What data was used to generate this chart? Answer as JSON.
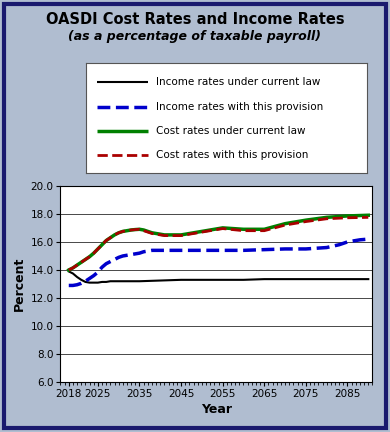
{
  "title": "OASDI Cost Rates and Income Rates",
  "subtitle": "(as a percentage of taxable payroll)",
  "xlabel": "Year",
  "ylabel": "Percent",
  "fig_bg_color": "#b0bdd0",
  "plot_bg_color": "#ffffff",
  "border_color": "#1a1a6e",
  "ylim": [
    6.0,
    20.0
  ],
  "yticks": [
    6.0,
    8.0,
    10.0,
    12.0,
    14.0,
    16.0,
    18.0,
    20.0
  ],
  "xticks": [
    2018,
    2025,
    2035,
    2045,
    2055,
    2065,
    2075,
    2085
  ],
  "xlim": [
    2016,
    2091
  ],
  "income_current_law": {
    "years": [
      2018,
      2019,
      2020,
      2021,
      2022,
      2023,
      2024,
      2025,
      2026,
      2027,
      2028,
      2029,
      2030,
      2031,
      2032,
      2033,
      2034,
      2035,
      2040,
      2045,
      2050,
      2055,
      2060,
      2065,
      2070,
      2075,
      2080,
      2085,
      2090
    ],
    "values": [
      13.9,
      13.75,
      13.5,
      13.3,
      13.15,
      13.1,
      13.1,
      13.1,
      13.15,
      13.15,
      13.2,
      13.2,
      13.2,
      13.2,
      13.2,
      13.2,
      13.2,
      13.2,
      13.25,
      13.3,
      13.3,
      13.3,
      13.3,
      13.35,
      13.35,
      13.35,
      13.35,
      13.35,
      13.35
    ],
    "color": "#000000",
    "linewidth": 1.5,
    "linestyle": "-",
    "label": "Income rates under current law"
  },
  "income_provision": {
    "years": [
      2018,
      2019,
      2020,
      2021,
      2022,
      2023,
      2024,
      2025,
      2026,
      2027,
      2028,
      2029,
      2030,
      2031,
      2032,
      2033,
      2034,
      2035,
      2036,
      2037,
      2038,
      2039,
      2040,
      2045,
      2050,
      2055,
      2060,
      2065,
      2070,
      2075,
      2080,
      2083,
      2085,
      2088,
      2090
    ],
    "values": [
      12.9,
      12.9,
      12.95,
      13.05,
      13.2,
      13.4,
      13.6,
      13.85,
      14.2,
      14.45,
      14.6,
      14.75,
      14.9,
      15.0,
      15.05,
      15.1,
      15.15,
      15.2,
      15.3,
      15.35,
      15.4,
      15.4,
      15.4,
      15.4,
      15.4,
      15.4,
      15.4,
      15.45,
      15.5,
      15.5,
      15.6,
      15.8,
      16.0,
      16.15,
      16.2
    ],
    "color": "#0000cc",
    "linewidth": 2.5,
    "linestyle": "--",
    "label": "Income rates with this provision"
  },
  "cost_current_law": {
    "years": [
      2018,
      2019,
      2020,
      2021,
      2022,
      2023,
      2024,
      2025,
      2026,
      2027,
      2028,
      2029,
      2030,
      2031,
      2032,
      2033,
      2034,
      2035,
      2036,
      2037,
      2038,
      2039,
      2040,
      2041,
      2042,
      2043,
      2044,
      2045,
      2046,
      2047,
      2048,
      2050,
      2055,
      2060,
      2065,
      2070,
      2075,
      2080,
      2085,
      2090
    ],
    "values": [
      14.0,
      14.15,
      14.35,
      14.55,
      14.75,
      14.95,
      15.2,
      15.5,
      15.8,
      16.1,
      16.3,
      16.5,
      16.65,
      16.75,
      16.8,
      16.85,
      16.88,
      16.9,
      16.85,
      16.75,
      16.65,
      16.6,
      16.55,
      16.5,
      16.5,
      16.5,
      16.5,
      16.5,
      16.55,
      16.6,
      16.65,
      16.75,
      17.0,
      16.9,
      16.9,
      17.3,
      17.55,
      17.75,
      17.85,
      17.9
    ],
    "color": "#008000",
    "linewidth": 2.5,
    "linestyle": "-",
    "label": "Cost rates under current law"
  },
  "cost_provision": {
    "years": [
      2018,
      2019,
      2020,
      2021,
      2022,
      2023,
      2024,
      2025,
      2026,
      2027,
      2028,
      2029,
      2030,
      2031,
      2032,
      2033,
      2034,
      2035,
      2036,
      2037,
      2038,
      2039,
      2040,
      2041,
      2042,
      2043,
      2044,
      2045,
      2046,
      2047,
      2048,
      2050,
      2055,
      2060,
      2065,
      2070,
      2075,
      2080,
      2085,
      2090
    ],
    "values": [
      14.0,
      14.15,
      14.35,
      14.55,
      14.75,
      14.95,
      15.2,
      15.5,
      15.8,
      16.1,
      16.3,
      16.5,
      16.65,
      16.75,
      16.8,
      16.85,
      16.88,
      16.9,
      16.8,
      16.7,
      16.6,
      16.55,
      16.5,
      16.45,
      16.45,
      16.45,
      16.45,
      16.45,
      16.5,
      16.55,
      16.6,
      16.7,
      16.95,
      16.8,
      16.8,
      17.2,
      17.45,
      17.65,
      17.72,
      17.75
    ],
    "color": "#aa0000",
    "linewidth": 2.0,
    "linestyle": "--",
    "label": "Cost rates with this provision"
  },
  "legend_entries": [
    {
      "label": "Income rates under current law",
      "color": "#000000",
      "ls": "-",
      "lw": 1.5
    },
    {
      "label": "Income rates with this provision",
      "color": "#0000cc",
      "ls": "--",
      "lw": 2.5
    },
    {
      "label": "Cost rates under current law",
      "color": "#008000",
      "ls": "-",
      "lw": 2.5
    },
    {
      "label": "Cost rates with this provision",
      "color": "#aa0000",
      "ls": "--",
      "lw": 2.0
    }
  ]
}
